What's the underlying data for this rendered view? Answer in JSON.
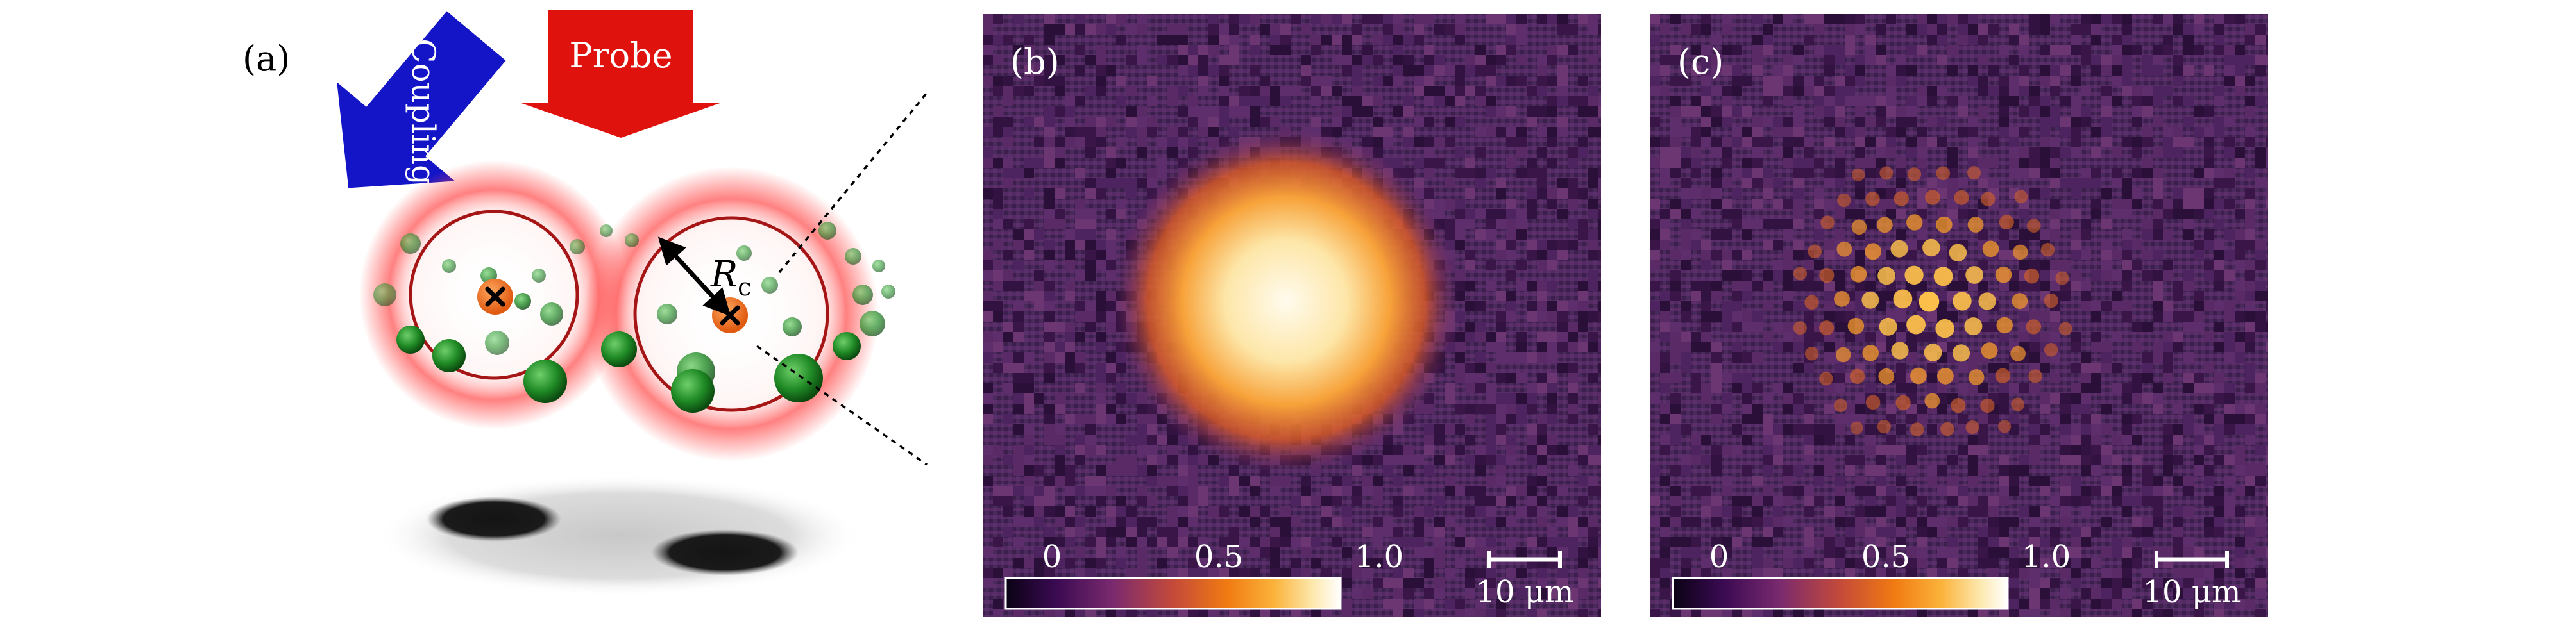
{
  "panel_a": {
    "label": "(a)",
    "coupling_label": "Coupling",
    "probe_label": "Probe",
    "blockade_radius_symbol": "R",
    "blockade_radius_subscript": "c",
    "colors": {
      "coupling_arrow": "#1515c8",
      "probe_arrow": "#e0120e",
      "atom_green": "#1f7a23",
      "rydberg_core": "#f06a1e",
      "red_glow": "#ff3a3a"
    }
  },
  "panel_b": {
    "label": "(b)",
    "colorbar_ticks": [
      "0",
      "0.5",
      "1.0"
    ],
    "scalebar_label": "10 μm"
  },
  "panel_c": {
    "label": "(c)",
    "colorbar_ticks": [
      "0",
      "0.5",
      "1.0"
    ],
    "scalebar_label": "10 μm"
  },
  "colormap": [
    "#0a0214",
    "#3a0a52",
    "#7a2a6e",
    "#c44a3a",
    "#f07a12",
    "#fbb23a",
    "#fde9b0",
    "#ffffff"
  ]
}
